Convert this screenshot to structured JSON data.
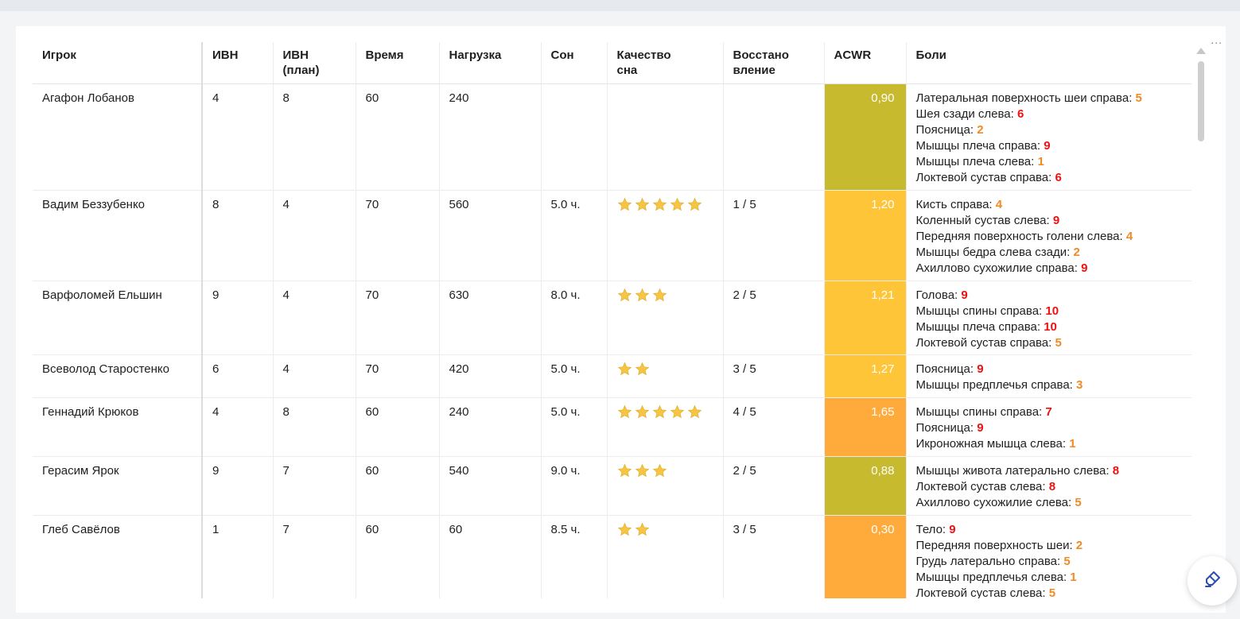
{
  "colors": {
    "acwr_olive": "#c7ba2f",
    "acwr_yellow": "#fec539",
    "acwr_orange": "#feab3b",
    "pain_high": "#ee1111",
    "pain_mid": "#f08a24",
    "star": "#f6c542"
  },
  "widget_menu": "...",
  "table": {
    "headers": {
      "player": "Игрок",
      "ivn": "ИВН",
      "ivn_plan_1": "ИВН",
      "ivn_plan_2": "(план)",
      "time": "Время",
      "load": "Нагрузка",
      "sleep": "Сон",
      "sleep_quality_1": "Качество",
      "sleep_quality_2": "сна",
      "recovery_1": "Восстано",
      "recovery_2": "вление",
      "acwr": "ACWR",
      "pains": "Боли"
    },
    "rows": [
      {
        "player": "Агафон Лобанов",
        "ivn": "4",
        "ivn_plan": "8",
        "time": "60",
        "load": "240",
        "sleep": "",
        "sleep_quality": 0,
        "recovery": "",
        "acwr": "0,90",
        "acwr_color": "acwr_olive",
        "pains": [
          {
            "label": "Латеральная поверхность шеи справа:",
            "level": "5"
          },
          {
            "label": "Шея сзади слева:",
            "level": "6"
          },
          {
            "label": "Поясница:",
            "level": "2"
          },
          {
            "label": "Мышцы плеча справа:",
            "level": "9"
          },
          {
            "label": "Мышцы плеча слева:",
            "level": "1"
          },
          {
            "label": "Локтевой сустав справа:",
            "level": "6"
          }
        ]
      },
      {
        "player": "Вадим Беззубенко",
        "ivn": "8",
        "ivn_plan": "4",
        "time": "70",
        "load": "560",
        "sleep": "5.0 ч.",
        "sleep_quality": 5,
        "recovery": "1 / 5",
        "acwr": "1,20",
        "acwr_color": "acwr_yellow",
        "pains": [
          {
            "label": "Кисть справа:",
            "level": "4"
          },
          {
            "label": "Коленный сустав слева:",
            "level": "9"
          },
          {
            "label": "Передняя поверхность голени слева:",
            "level": "4"
          },
          {
            "label": "Мышцы бедра слева сзади:",
            "level": "2"
          },
          {
            "label": "Ахиллово сухожилие справа:",
            "level": "9"
          }
        ]
      },
      {
        "player": "Варфоломей Ельшин",
        "ivn": "9",
        "ivn_plan": "4",
        "time": "70",
        "load": "630",
        "sleep": "8.0 ч.",
        "sleep_quality": 3,
        "recovery": "2 / 5",
        "acwr": "1,21",
        "acwr_color": "acwr_yellow",
        "pains": [
          {
            "label": "Голова:",
            "level": "9"
          },
          {
            "label": "Мышцы спины справа:",
            "level": "10"
          },
          {
            "label": "Мышцы плеча справа:",
            "level": "10"
          },
          {
            "label": "Локтевой сустав справа:",
            "level": "5"
          }
        ]
      },
      {
        "player": "Всеволод Старостенко",
        "ivn": "6",
        "ivn_plan": "4",
        "time": "70",
        "load": "420",
        "sleep": "5.0 ч.",
        "sleep_quality": 2,
        "recovery": "3 / 5",
        "acwr": "1,27",
        "acwr_color": "acwr_yellow",
        "pains": [
          {
            "label": "Поясница:",
            "level": "9"
          },
          {
            "label": "Мышцы предплечья справа:",
            "level": "3"
          }
        ]
      },
      {
        "player": "Геннадий Крюков",
        "ivn": "4",
        "ivn_plan": "8",
        "time": "60",
        "load": "240",
        "sleep": "5.0 ч.",
        "sleep_quality": 5,
        "recovery": "4 / 5",
        "acwr": "1,65",
        "acwr_color": "acwr_orange",
        "pains": [
          {
            "label": "Мышцы спины справа:",
            "level": "7"
          },
          {
            "label": "Поясница:",
            "level": "9"
          },
          {
            "label": "Икроножная мышца слева:",
            "level": "1"
          }
        ]
      },
      {
        "player": "Герасим Ярок",
        "ivn": "9",
        "ivn_plan": "7",
        "time": "60",
        "load": "540",
        "sleep": "9.0 ч.",
        "sleep_quality": 3,
        "recovery": "2 / 5",
        "acwr": "0,88",
        "acwr_color": "acwr_olive",
        "pains": [
          {
            "label": "Мышцы живота латерально слева:",
            "level": "8"
          },
          {
            "label": "Локтевой сустав слева:",
            "level": "8"
          },
          {
            "label": "Ахиллово сухожилие слева:",
            "level": "5"
          }
        ]
      },
      {
        "player": "Глеб Савёлов",
        "ivn": "1",
        "ivn_plan": "7",
        "time": "60",
        "load": "60",
        "sleep": "8.5 ч.",
        "sleep_quality": 2,
        "recovery": "3 / 5",
        "acwr": "0,30",
        "acwr_color": "acwr_orange",
        "pains": [
          {
            "label": "Тело:",
            "level": "9"
          },
          {
            "label": "Передняя поверхность шеи:",
            "level": "2"
          },
          {
            "label": "Грудь латерально справа:",
            "level": "5"
          },
          {
            "label": "Мышцы предплечья слева:",
            "level": "1"
          },
          {
            "label": "Локтевой сустав слева:",
            "level": "5"
          }
        ]
      }
    ]
  },
  "fab_icon": "highlighter-icon"
}
